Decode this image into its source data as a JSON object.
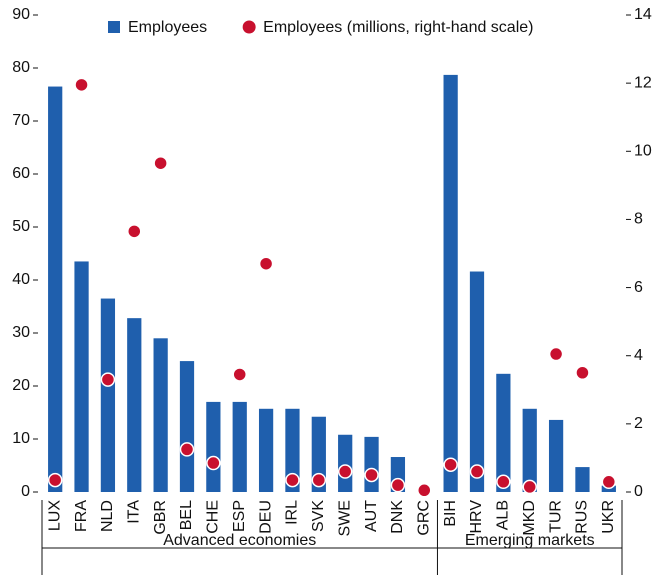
{
  "chart_data": {
    "type": "bar",
    "categories": [
      "LUX",
      "FRA",
      "NLD",
      "ITA",
      "GBR",
      "BEL",
      "CHE",
      "ESP",
      "DEU",
      "IRL",
      "SVK",
      "SWE",
      "AUT",
      "DNK",
      "GRC",
      "BIH",
      "HRV",
      "ALB",
      "MKD",
      "TUR",
      "RUS",
      "UKR"
    ],
    "groups": [
      {
        "label": "Advanced economies",
        "count": 15
      },
      {
        "label": "Emerging markets",
        "count": 7
      }
    ],
    "series": [
      {
        "name": "Employees",
        "type": "bar",
        "color": "#1f5fad",
        "values": [
          76.5,
          43.5,
          36.5,
          32.8,
          29,
          24.7,
          17,
          17,
          15.7,
          15.7,
          14.2,
          10.8,
          10.4,
          6.6,
          0,
          78.7,
          41.6,
          22.3,
          15.7,
          13.6,
          4.7,
          1.2
        ]
      },
      {
        "name": "Employees (millions, right-hand scale)",
        "type": "scatter",
        "axis": "y2",
        "color": "#c8102e",
        "values": [
          0.35,
          11.95,
          3.3,
          7.65,
          9.65,
          1.25,
          0.85,
          3.45,
          6.7,
          0.35,
          0.35,
          0.6,
          0.5,
          0.2,
          0.05,
          0.8,
          0.6,
          0.3,
          0.15,
          4.05,
          3.5,
          0.3
        ]
      }
    ],
    "ylim": [
      0,
      90
    ],
    "yticks": [
      0,
      10,
      20,
      30,
      40,
      50,
      60,
      70,
      80,
      90
    ],
    "y2lim": [
      0,
      14
    ],
    "y2ticks": [
      0,
      2,
      4,
      6,
      8,
      10,
      12,
      14
    ],
    "legend": "top"
  }
}
